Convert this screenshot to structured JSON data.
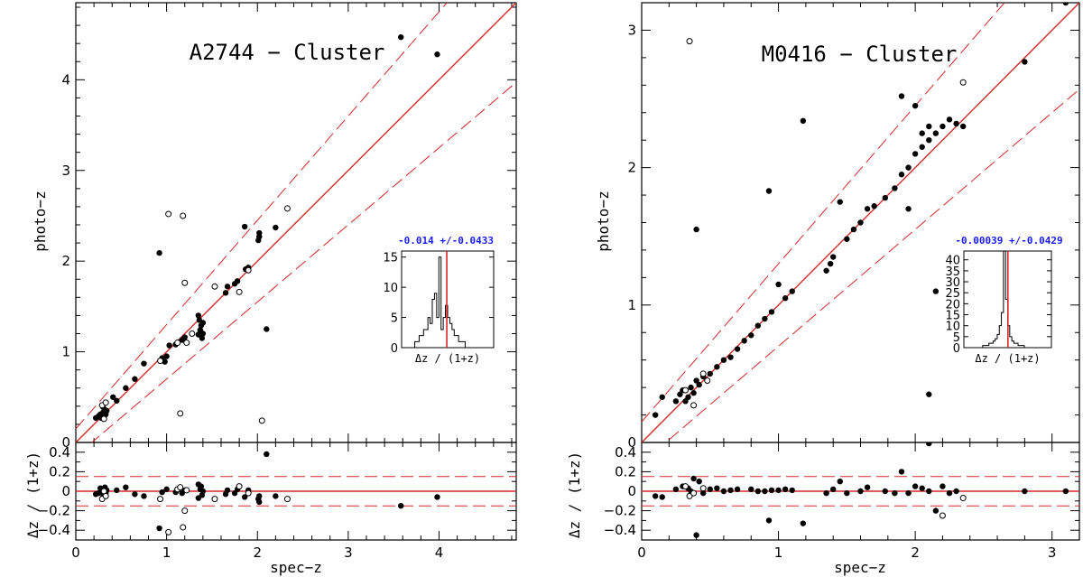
{
  "colors": {
    "fit_line": "#d42a2a",
    "points": "#000000",
    "stat_text": "#1a1aff"
  },
  "chart_data": [
    {
      "type": "scatter",
      "title": "A2744 − Cluster",
      "xlabel": "spec−z",
      "ylabel": "photo−z",
      "residual_ylabel": "Δz / (1+z)",
      "xlim": [
        0,
        4.85
      ],
      "ylim": [
        0,
        4.85
      ],
      "residual_ylim": [
        -0.5,
        0.5
      ],
      "x_ticks": [
        0,
        1,
        2,
        3,
        4
      ],
      "y_ticks": [
        0,
        1,
        2,
        3,
        4
      ],
      "residual_ticks": [
        0.4,
        0.2,
        0,
        -0.2,
        -0.4
      ],
      "tick_labels_x": [
        "0",
        "1",
        "2",
        "3",
        "4"
      ],
      "tick_labels_y": [
        "0",
        "1",
        "2",
        "3",
        "4"
      ],
      "tick_labels_residual": [
        "0.4",
        "0.2",
        "0",
        "−0.2",
        "−0.4"
      ],
      "outlier_band": 0.15,
      "filled_points": [
        [
          0.22,
          0.27
        ],
        [
          0.25,
          0.29
        ],
        [
          0.27,
          0.31
        ],
        [
          0.28,
          0.27
        ],
        [
          0.3,
          0.33
        ],
        [
          0.31,
          0.29
        ],
        [
          0.32,
          0.36
        ],
        [
          0.3,
          0.39
        ],
        [
          0.33,
          0.31
        ],
        [
          0.34,
          0.35
        ],
        [
          0.41,
          0.5
        ],
        [
          0.45,
          0.46
        ],
        [
          0.55,
          0.6
        ],
        [
          0.65,
          0.7
        ],
        [
          0.75,
          0.87
        ],
        [
          0.92,
          2.09
        ],
        [
          0.95,
          0.93
        ],
        [
          0.98,
          0.89
        ],
        [
          1.0,
          0.95
        ],
        [
          1.03,
          1.07
        ],
        [
          1.1,
          1.08
        ],
        [
          1.17,
          1.13
        ],
        [
          1.2,
          1.16
        ],
        [
          1.35,
          1.19
        ],
        [
          1.35,
          1.4
        ],
        [
          1.36,
          1.35
        ],
        [
          1.37,
          1.24
        ],
        [
          1.38,
          1.29
        ],
        [
          1.39,
          1.15
        ],
        [
          1.4,
          1.32
        ],
        [
          1.4,
          1.2
        ],
        [
          1.65,
          1.65
        ],
        [
          1.67,
          1.72
        ],
        [
          1.75,
          1.75
        ],
        [
          1.78,
          1.78
        ],
        [
          1.86,
          2.38
        ],
        [
          1.87,
          1.91
        ],
        [
          1.9,
          1.93
        ],
        [
          2.01,
          2.23
        ],
        [
          2.02,
          2.31
        ],
        [
          2.02,
          2.27
        ],
        [
          2.1,
          1.25
        ],
        [
          2.2,
          2.37
        ],
        [
          3.58,
          4.47
        ],
        [
          3.98,
          4.28
        ]
      ],
      "open_points": [
        [
          0.29,
          0.41
        ],
        [
          0.31,
          0.26
        ],
        [
          0.33,
          0.44
        ],
        [
          0.93,
          0.9
        ],
        [
          1.02,
          2.52
        ],
        [
          1.12,
          1.1
        ],
        [
          1.15,
          0.32
        ],
        [
          1.18,
          2.5
        ],
        [
          1.2,
          1.76
        ],
        [
          1.22,
          1.1
        ],
        [
          1.28,
          1.2
        ],
        [
          1.53,
          1.72
        ],
        [
          1.8,
          1.66
        ],
        [
          1.9,
          1.9
        ],
        [
          2.05,
          0.24
        ],
        [
          2.33,
          2.58
        ]
      ],
      "filled_residuals": [
        [
          0.22,
          -0.03
        ],
        [
          0.25,
          -0.02
        ],
        [
          0.27,
          0.03
        ],
        [
          0.28,
          -0.01
        ],
        [
          0.3,
          -0.06
        ],
        [
          0.31,
          -0.02
        ],
        [
          0.32,
          0.04
        ],
        [
          0.33,
          -0.02
        ],
        [
          0.34,
          0.01
        ],
        [
          0.45,
          0.01
        ],
        [
          0.55,
          0.04
        ],
        [
          0.65,
          -0.03
        ],
        [
          0.75,
          -0.05
        ],
        [
          0.92,
          -0.38
        ],
        [
          0.95,
          -0.01
        ],
        [
          1.0,
          0.02
        ],
        [
          1.1,
          -0.01
        ],
        [
          1.17,
          -0.02
        ],
        [
          1.2,
          0.01
        ],
        [
          1.35,
          -0.07
        ],
        [
          1.35,
          0.07
        ],
        [
          1.37,
          0.02
        ],
        [
          1.38,
          0.05
        ],
        [
          1.39,
          -0.04
        ],
        [
          1.4,
          0.0
        ],
        [
          1.65,
          -0.03
        ],
        [
          1.67,
          0.01
        ],
        [
          1.75,
          -0.02
        ],
        [
          1.78,
          0.02
        ],
        [
          1.86,
          -0.06
        ],
        [
          1.9,
          0.01
        ],
        [
          2.01,
          -0.08
        ],
        [
          2.02,
          -0.11
        ],
        [
          2.02,
          -0.05
        ],
        [
          2.1,
          0.38
        ],
        [
          2.2,
          -0.05
        ],
        [
          3.58,
          -0.15
        ],
        [
          3.98,
          -0.06
        ]
      ],
      "open_residuals": [
        [
          0.29,
          -0.08
        ],
        [
          0.31,
          0.0
        ],
        [
          0.33,
          -0.05
        ],
        [
          0.93,
          -0.08
        ],
        [
          1.02,
          -0.42
        ],
        [
          1.12,
          0.02
        ],
        [
          1.15,
          0.04
        ],
        [
          1.2,
          -0.2
        ],
        [
          1.22,
          0.01
        ],
        [
          1.18,
          -0.37
        ],
        [
          1.53,
          -0.08
        ],
        [
          1.8,
          0.05
        ],
        [
          1.9,
          -0.02
        ],
        [
          2.33,
          -0.08
        ]
      ],
      "inset": {
        "stat": "-0.014 +/-0.0433",
        "xlabel": "Δz / (1+z)",
        "ylim": [
          0,
          16
        ],
        "y_ticks": [
          0,
          5,
          10,
          15
        ],
        "tick_labels_y": [
          "0",
          "5",
          "10",
          "15"
        ],
        "bin_width": 0.05,
        "x_range": [
          -0.55,
          0.55
        ],
        "histogram_counts": [
          0,
          0,
          0,
          0,
          0,
          0,
          1,
          1,
          2,
          2,
          3,
          3,
          5,
          4,
          8,
          9,
          5,
          15,
          3,
          5,
          7,
          5,
          4,
          3,
          2,
          2,
          1,
          1,
          1,
          0,
          0,
          0,
          0,
          0,
          0,
          0,
          0,
          0,
          0,
          0,
          0,
          0
        ],
        "hist_bins_start": -0.55,
        "hist_bin_width": 0.026,
        "peak_marker": -0.014
      }
    },
    {
      "type": "scatter",
      "title": "M0416 − Cluster",
      "xlabel": "spec−z",
      "ylabel": "photo−z",
      "residual_ylabel": "Δz / (1+z)",
      "xlim": [
        0,
        3.2
      ],
      "ylim": [
        0,
        3.2
      ],
      "residual_ylim": [
        -0.5,
        0.5
      ],
      "x_ticks": [
        0,
        1,
        2,
        3
      ],
      "y_ticks": [
        0,
        1,
        2,
        3
      ],
      "residual_ticks": [
        0.4,
        0.2,
        0,
        -0.2,
        -0.4
      ],
      "tick_labels_x": [
        "0",
        "1",
        "2",
        "3"
      ],
      "tick_labels_y": [
        "0",
        "1",
        "2",
        "3"
      ],
      "tick_labels_residual": [
        "0.4",
        "0.2",
        "0",
        "−0.2",
        "−0.4"
      ],
      "outlier_band": 0.15,
      "filled_points": [
        [
          0.1,
          0.2
        ],
        [
          0.15,
          0.33
        ],
        [
          0.25,
          0.3
        ],
        [
          0.28,
          0.35
        ],
        [
          0.3,
          0.38
        ],
        [
          0.32,
          0.3
        ],
        [
          0.34,
          0.33
        ],
        [
          0.36,
          0.4
        ],
        [
          0.38,
          0.36
        ],
        [
          0.4,
          0.45
        ],
        [
          0.4,
          1.55
        ],
        [
          0.42,
          0.42
        ],
        [
          0.45,
          0.48
        ],
        [
          0.5,
          0.5
        ],
        [
          0.55,
          0.55
        ],
        [
          0.6,
          0.6
        ],
        [
          0.65,
          0.62
        ],
        [
          0.7,
          0.68
        ],
        [
          0.75,
          0.74
        ],
        [
          0.8,
          0.78
        ],
        [
          0.85,
          0.85
        ],
        [
          0.9,
          0.9
        ],
        [
          0.93,
          1.83
        ],
        [
          0.95,
          0.95
        ],
        [
          1.0,
          1.15
        ],
        [
          1.05,
          1.05
        ],
        [
          1.1,
          1.1
        ],
        [
          1.18,
          2.34
        ],
        [
          1.35,
          1.25
        ],
        [
          1.38,
          1.3
        ],
        [
          1.4,
          1.35
        ],
        [
          1.45,
          1.75
        ],
        [
          1.5,
          1.48
        ],
        [
          1.55,
          1.55
        ],
        [
          1.6,
          1.6
        ],
        [
          1.65,
          1.7
        ],
        [
          1.7,
          1.72
        ],
        [
          1.78,
          1.78
        ],
        [
          1.85,
          1.85
        ],
        [
          1.9,
          1.95
        ],
        [
          1.95,
          2.0
        ],
        [
          2.0,
          2.1
        ],
        [
          2.05,
          2.15
        ],
        [
          2.1,
          0.35
        ],
        [
          2.1,
          2.2
        ],
        [
          2.15,
          2.25
        ],
        [
          2.2,
          2.3
        ],
        [
          2.25,
          2.35
        ],
        [
          2.3,
          2.32
        ],
        [
          2.35,
          2.3
        ],
        [
          1.9,
          2.52
        ],
        [
          1.95,
          1.7
        ],
        [
          2.0,
          2.45
        ],
        [
          2.05,
          2.25
        ],
        [
          2.1,
          2.3
        ],
        [
          2.15,
          1.1
        ],
        [
          2.8,
          2.77
        ],
        [
          3.1,
          3.2
        ]
      ],
      "open_points": [
        [
          0.32,
          0.38
        ],
        [
          0.35,
          2.92
        ],
        [
          0.38,
          0.27
        ],
        [
          0.45,
          0.5
        ],
        [
          0.48,
          0.45
        ],
        [
          2.35,
          2.62
        ]
      ],
      "filled_residuals": [
        [
          0.1,
          -0.05
        ],
        [
          0.15,
          -0.06
        ],
        [
          0.25,
          0.02
        ],
        [
          0.3,
          0.05
        ],
        [
          0.34,
          0.03
        ],
        [
          0.36,
          0.0
        ],
        [
          0.38,
          0.13
        ],
        [
          0.4,
          -0.45
        ],
        [
          0.42,
          0.1
        ],
        [
          0.45,
          -0.02
        ],
        [
          0.5,
          0.02
        ],
        [
          0.55,
          0.03
        ],
        [
          0.6,
          0.0
        ],
        [
          0.65,
          0.01
        ],
        [
          0.7,
          0.02
        ],
        [
          0.8,
          0.02
        ],
        [
          0.85,
          0.0
        ],
        [
          0.9,
          0.0
        ],
        [
          0.93,
          -0.3
        ],
        [
          0.95,
          0.01
        ],
        [
          1.0,
          0.01
        ],
        [
          1.05,
          0.02
        ],
        [
          1.1,
          0.01
        ],
        [
          1.18,
          -0.33
        ],
        [
          1.35,
          -0.02
        ],
        [
          1.4,
          0.02
        ],
        [
          1.45,
          0.1
        ],
        [
          1.5,
          -0.02
        ],
        [
          1.6,
          0.0
        ],
        [
          1.65,
          0.04
        ],
        [
          1.78,
          0.0
        ],
        [
          1.85,
          -0.02
        ],
        [
          1.9,
          0.2
        ],
        [
          1.95,
          -0.02
        ],
        [
          2.0,
          0.05
        ],
        [
          2.05,
          0.03
        ],
        [
          2.1,
          0.49
        ],
        [
          2.1,
          0.0
        ],
        [
          2.15,
          -0.2
        ],
        [
          2.2,
          0.05
        ],
        [
          2.25,
          -0.02
        ],
        [
          2.3,
          0.0
        ],
        [
          2.8,
          0.0
        ],
        [
          3.1,
          0.0
        ]
      ],
      "open_residuals": [
        [
          0.32,
          0.05
        ],
        [
          0.35,
          -0.05
        ],
        [
          0.38,
          -0.02
        ],
        [
          0.45,
          0.03
        ],
        [
          2.2,
          -0.25
        ],
        [
          2.35,
          -0.07
        ]
      ],
      "inset": {
        "stat": "-0.00039 +/-0.0429",
        "xlabel": "Δz / (1+z)",
        "ylim": [
          0,
          44
        ],
        "y_ticks": [
          0,
          5,
          10,
          15,
          20,
          25,
          30,
          35,
          40
        ],
        "tick_labels_y": [
          "0",
          "5",
          "10",
          "15",
          "20",
          "25",
          "30",
          "35",
          "40"
        ],
        "histogram_counts": [
          0,
          0,
          0,
          0,
          0,
          0,
          0,
          0,
          0,
          1,
          1,
          1,
          2,
          2,
          3,
          4,
          6,
          10,
          16,
          44,
          22,
          10,
          5,
          3,
          2,
          2,
          1,
          1,
          1,
          0,
          0,
          0,
          0,
          0,
          0,
          0,
          0,
          0,
          0,
          0,
          0,
          0
        ],
        "hist_bins_start": -0.55,
        "hist_bin_width": 0.026,
        "peak_marker": -0.00039
      }
    }
  ]
}
